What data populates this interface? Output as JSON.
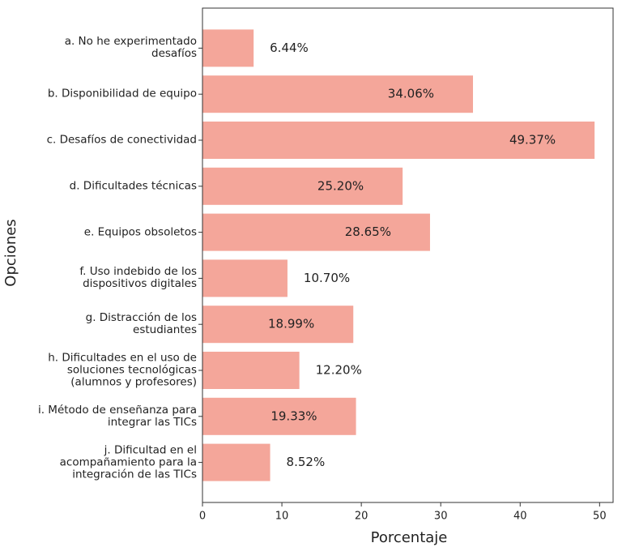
{
  "chart_data": {
    "type": "barh",
    "categories": [
      "a. No he experimentado\ndesafíos",
      "b. Disponibilidad de equipo",
      "c. Desafíos de conectividad",
      "d. Dificultades técnicas",
      "e. Equipos obsoletos",
      "f. Uso indebido de los\ndispositivos digitales",
      "g. Distracción de los\nestudiantes",
      "h. Dificultades en el uso de\nsoluciones tecnológicas\n(alumnos y profesores)",
      "i. Método de enseñanza para\nintegrar las TICs",
      "j. Dificultad en el\nacompañamiento para la\nintegración de las TICs"
    ],
    "values": [
      6.44,
      34.06,
      49.37,
      25.2,
      28.65,
      10.7,
      18.99,
      12.2,
      19.33,
      8.52
    ],
    "value_labels": [
      "6.44%",
      "34.06%",
      "49.37%",
      "25.20%",
      "28.65%",
      "10.70%",
      "18.99%",
      "12.20%",
      "19.33%",
      "8.52%"
    ],
    "color": "#f4a69a",
    "x_label": "Porcentaje",
    "y_label": "Opciones",
    "xlim": [
      0,
      51.7
    ],
    "xticks": [
      0,
      10,
      20,
      30,
      40,
      50
    ]
  }
}
